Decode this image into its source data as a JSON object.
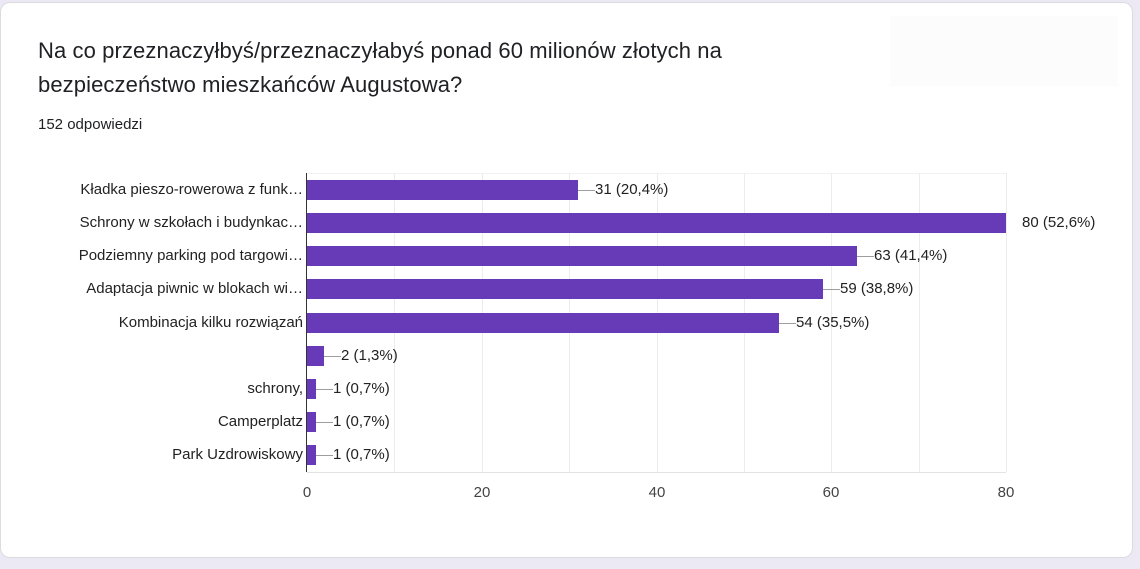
{
  "card": {
    "title": "Na co przeznaczyłbyś/przeznaczyłabyś ponad 60 milionów złotych  na bezpieczeństwo mieszkańców Augustowa?",
    "response_count": "152 odpowiedzi"
  },
  "colors": {
    "bar": "#673ab7",
    "background": "#ece9f4",
    "card": "#ffffff"
  },
  "chart_data": {
    "type": "bar",
    "orientation": "horizontal",
    "title": "Na co przeznaczyłbyś/przeznaczyłabyś ponad 60 milionów złotych  na bezpieczeństwo mieszkańców Augustowa?",
    "subtitle": "152 odpowiedzi",
    "categories": [
      "Kładka pieszo-rowerowa z funk…",
      "Schrony w szkołach i budynkac…",
      "Podziemny parking pod targowi…",
      "Adaptacja piwnic w blokach wi…",
      "Kombinacja kilku rozwiązań",
      "",
      "schrony,",
      "Camperplatz",
      "Park Uzdrowiskowy"
    ],
    "values": [
      31,
      80,
      63,
      59,
      54,
      2,
      1,
      1,
      1
    ],
    "value_labels": [
      "31 (20,4%)",
      "80 (52,6%)",
      "63 (41,4%)",
      "59 (38,8%)",
      "54 (35,5%)",
      "2 (1,3%)",
      "1 (0,7%)",
      "1 (0,7%)",
      "1 (0,7%)"
    ],
    "percentages": [
      20.4,
      52.6,
      41.4,
      38.8,
      35.5,
      1.3,
      0.7,
      0.7,
      0.7
    ],
    "xlabel": "",
    "ylabel": "",
    "xlim": [
      0,
      80
    ],
    "x_ticks": [
      "0",
      "20",
      "40",
      "60",
      "80"
    ],
    "grid": true,
    "grid_step": 10,
    "legend": "none"
  }
}
